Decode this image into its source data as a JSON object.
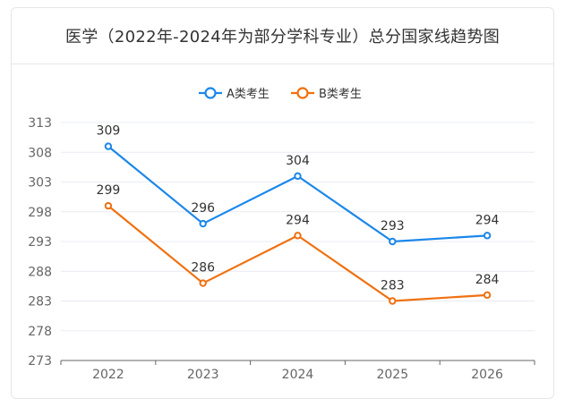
{
  "header": {
    "title": "医学（2022年-2024年为部分学科专业）总分国家线趋势图"
  },
  "colors": {
    "series_a": "#1b87ea",
    "series_b": "#f0700f",
    "grid": "#e9ecf3",
    "axis": "#666666"
  },
  "chart_data": {
    "type": "line",
    "title": "医学（2022年-2024年为部分学科专业）总分国家线趋势图",
    "x": [
      "2022",
      "2023",
      "2024",
      "2025",
      "2026"
    ],
    "y_ticks": [
      273,
      278,
      283,
      288,
      293,
      298,
      303,
      308,
      313
    ],
    "ylim": [
      273,
      313
    ],
    "grid": true,
    "legend_position": "top",
    "series": [
      {
        "name": "A类考生",
        "values": [
          309,
          296,
          304,
          293,
          294
        ]
      },
      {
        "name": "B类考生",
        "values": [
          299,
          286,
          294,
          283,
          284
        ]
      }
    ]
  }
}
